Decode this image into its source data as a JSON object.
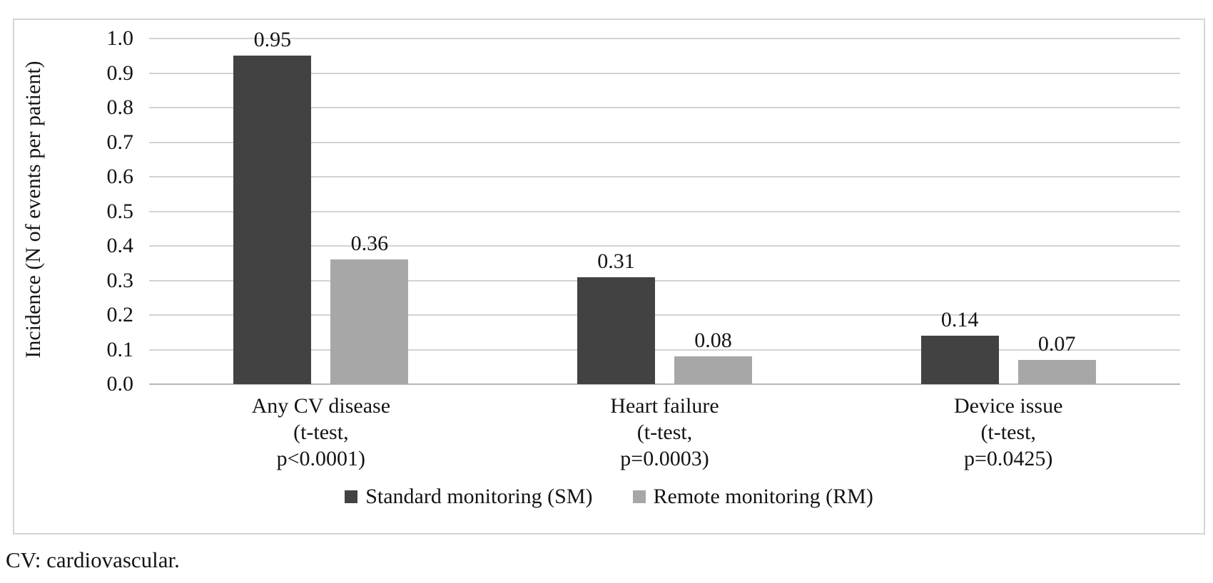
{
  "figure": {
    "footnote": "CV: cardiovascular."
  },
  "colors": {
    "series_dark": "#424242",
    "series_light": "#a7a7a7",
    "gridline": "#d3d3d3",
    "axis_line": "#b7b7b7",
    "chart_border": "#d5d5d5",
    "text": "#141414",
    "background": "#ffffff"
  },
  "chart_data": {
    "type": "bar",
    "title": "",
    "xlabel": "",
    "ylabel": "Incidence (N of events per patient)",
    "ylim": [
      0.0,
      1.0
    ],
    "ytick_step": 0.1,
    "yticks": [
      "1.0",
      "0.9",
      "0.8",
      "0.7",
      "0.6",
      "0.5",
      "0.4",
      "0.3",
      "0.2",
      "0.1",
      "0.0"
    ],
    "grid": "horizontal",
    "legend_position": "bottom",
    "categories": [
      {
        "lines": [
          "Any CV disease",
          "(t-test,",
          "p<0.0001)"
        ]
      },
      {
        "lines": [
          "Heart failure",
          "(t-test,",
          "p=0.0003)"
        ]
      },
      {
        "lines": [
          "Device issue",
          "(t-test,",
          "p=0.0425)"
        ]
      }
    ],
    "series": [
      {
        "name": "Standard monitoring (SM)",
        "color": "#424242",
        "values": [
          0.95,
          0.31,
          0.14
        ],
        "value_labels": [
          "0.95",
          "0.31",
          "0.14"
        ]
      },
      {
        "name": "Remote monitoring (RM)",
        "color": "#a7a7a7",
        "values": [
          0.36,
          0.08,
          0.07
        ],
        "value_labels": [
          "0.36",
          "0.08",
          "0.07"
        ]
      }
    ]
  }
}
